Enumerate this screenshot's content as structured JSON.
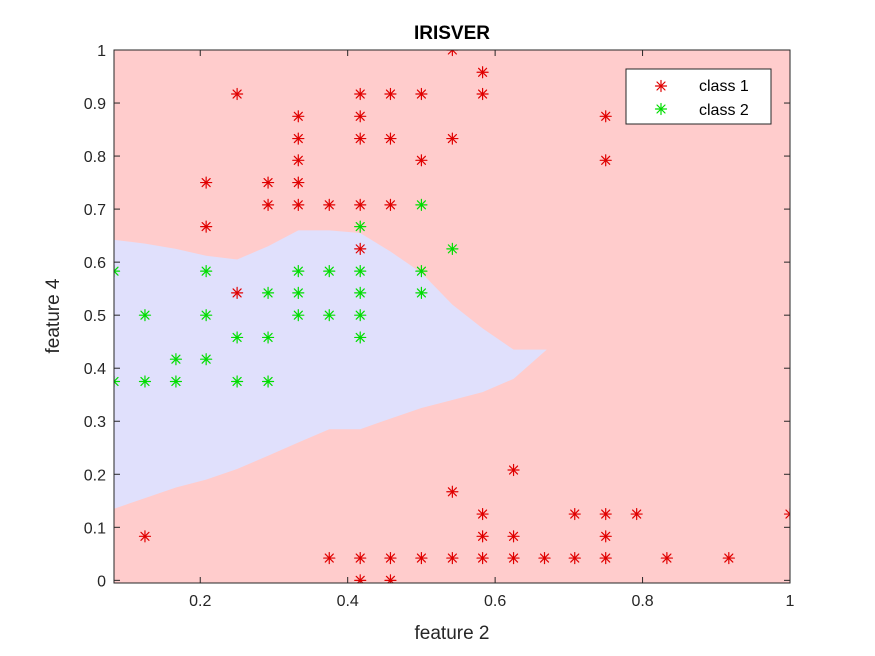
{
  "chart_data": {
    "type": "scatter",
    "title": "IRISVER",
    "xlabel": "feature 2",
    "ylabel": "feature 4",
    "xlim": [
      0.083,
      1.0
    ],
    "ylim": [
      -0.005,
      1.0
    ],
    "xticks": [
      0.2,
      0.4,
      0.6,
      0.8,
      1
    ],
    "xtick_labels": [
      "0.2",
      "0.4",
      "0.6",
      "0.8",
      "1"
    ],
    "yticks": [
      0,
      0.1,
      0.2,
      0.3,
      0.4,
      0.5,
      0.6,
      0.7,
      0.8,
      0.9,
      1
    ],
    "ytick_labels": [
      "0",
      "0.1",
      "0.2",
      "0.3",
      "0.4",
      "0.5",
      "0.6",
      "0.7",
      "0.8",
      "0.9",
      "1"
    ],
    "grid": false,
    "legend": {
      "position": "top-right"
    },
    "colors": {
      "class1_region": "#ffcccc",
      "class2_region": "#e0e0fc",
      "class1_marker": "#e00000",
      "class2_marker": "#00dd00"
    },
    "decision_region": {
      "class": "class 2",
      "upper_boundary": [
        [
          0.083,
          0.642
        ],
        [
          0.125,
          0.635
        ],
        [
          0.167,
          0.625
        ],
        [
          0.208,
          0.612
        ],
        [
          0.25,
          0.605
        ],
        [
          0.292,
          0.63
        ],
        [
          0.333,
          0.66
        ],
        [
          0.375,
          0.66
        ],
        [
          0.417,
          0.655
        ],
        [
          0.458,
          0.62
        ],
        [
          0.5,
          0.58
        ],
        [
          0.542,
          0.52
        ],
        [
          0.583,
          0.475
        ],
        [
          0.625,
          0.435
        ],
        [
          0.67,
          0.435
        ]
      ],
      "lower_boundary": [
        [
          0.083,
          0.135
        ],
        [
          0.125,
          0.155
        ],
        [
          0.167,
          0.175
        ],
        [
          0.208,
          0.19
        ],
        [
          0.25,
          0.21
        ],
        [
          0.292,
          0.235
        ],
        [
          0.333,
          0.26
        ],
        [
          0.375,
          0.285
        ],
        [
          0.417,
          0.285
        ],
        [
          0.458,
          0.305
        ],
        [
          0.5,
          0.325
        ],
        [
          0.542,
          0.34
        ],
        [
          0.583,
          0.355
        ],
        [
          0.625,
          0.38
        ],
        [
          0.67,
          0.435
        ]
      ]
    },
    "series": [
      {
        "name": "class 1",
        "color": "#e00000",
        "marker": "asterisk",
        "points": [
          [
            0.25,
            0.917
          ],
          [
            0.333,
            0.875
          ],
          [
            0.333,
            0.833
          ],
          [
            0.333,
            0.792
          ],
          [
            0.333,
            0.75
          ],
          [
            0.333,
            0.708
          ],
          [
            0.417,
            0.917
          ],
          [
            0.417,
            0.875
          ],
          [
            0.417,
            0.833
          ],
          [
            0.417,
            0.708
          ],
          [
            0.417,
            0.625
          ],
          [
            0.458,
            0.917
          ],
          [
            0.458,
            0.833
          ],
          [
            0.458,
            0.708
          ],
          [
            0.5,
            0.917
          ],
          [
            0.5,
            0.792
          ],
          [
            0.542,
            1.0
          ],
          [
            0.542,
            0.833
          ],
          [
            0.583,
            0.958
          ],
          [
            0.583,
            0.917
          ],
          [
            0.75,
            0.875
          ],
          [
            0.75,
            0.792
          ],
          [
            0.208,
            0.75
          ],
          [
            0.208,
            0.667
          ],
          [
            0.292,
            0.75
          ],
          [
            0.292,
            0.708
          ],
          [
            0.375,
            0.708
          ],
          [
            0.25,
            0.542
          ],
          [
            0.125,
            0.083
          ],
          [
            0.375,
            0.042
          ],
          [
            0.417,
            0.042
          ],
          [
            0.417,
            0.0
          ],
          [
            0.458,
            0.042
          ],
          [
            0.458,
            0.0
          ],
          [
            0.5,
            0.042
          ],
          [
            0.542,
            0.167
          ],
          [
            0.542,
            0.042
          ],
          [
            0.583,
            0.125
          ],
          [
            0.583,
            0.083
          ],
          [
            0.583,
            0.042
          ],
          [
            0.625,
            0.208
          ],
          [
            0.625,
            0.083
          ],
          [
            0.625,
            0.042
          ],
          [
            0.667,
            0.042
          ],
          [
            0.708,
            0.125
          ],
          [
            0.708,
            0.042
          ],
          [
            0.75,
            0.125
          ],
          [
            0.75,
            0.083
          ],
          [
            0.75,
            0.042
          ],
          [
            0.792,
            0.125
          ],
          [
            0.833,
            0.042
          ],
          [
            0.917,
            0.042
          ],
          [
            1.0,
            0.125
          ]
        ]
      },
      {
        "name": "class 2",
        "color": "#00dd00",
        "marker": "asterisk",
        "points": [
          [
            0.083,
            0.583
          ],
          [
            0.083,
            0.375
          ],
          [
            0.125,
            0.5
          ],
          [
            0.125,
            0.375
          ],
          [
            0.167,
            0.417
          ],
          [
            0.167,
            0.375
          ],
          [
            0.208,
            0.583
          ],
          [
            0.208,
            0.5
          ],
          [
            0.208,
            0.417
          ],
          [
            0.25,
            0.458
          ],
          [
            0.25,
            0.375
          ],
          [
            0.292,
            0.542
          ],
          [
            0.292,
            0.458
          ],
          [
            0.292,
            0.375
          ],
          [
            0.333,
            0.583
          ],
          [
            0.333,
            0.542
          ],
          [
            0.333,
            0.5
          ],
          [
            0.375,
            0.583
          ],
          [
            0.375,
            0.5
          ],
          [
            0.417,
            0.667
          ],
          [
            0.417,
            0.583
          ],
          [
            0.417,
            0.542
          ],
          [
            0.417,
            0.5
          ],
          [
            0.417,
            0.458
          ],
          [
            0.5,
            0.708
          ],
          [
            0.5,
            0.583
          ],
          [
            0.5,
            0.542
          ],
          [
            0.542,
            0.625
          ]
        ]
      }
    ]
  }
}
